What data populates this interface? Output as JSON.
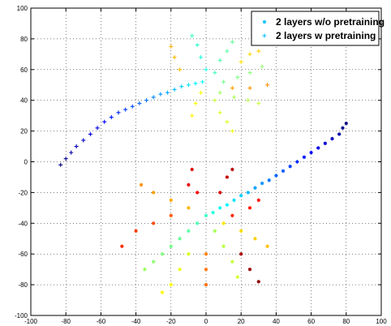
{
  "chart_data": {
    "type": "scatter",
    "title": "",
    "xlabel": "",
    "ylabel": "",
    "xlim": [
      -100,
      100
    ],
    "ylim": [
      -100,
      100
    ],
    "xticks": [
      -100,
      -80,
      -60,
      -40,
      -20,
      0,
      20,
      40,
      60,
      80,
      100
    ],
    "yticks": [
      -100,
      -80,
      -60,
      -40,
      -20,
      0,
      20,
      40,
      60,
      80,
      100
    ],
    "grid": true,
    "grid_style": "dotted",
    "colormap": "jet",
    "legend": {
      "placement": "top-right",
      "entries": [
        {
          "label": "2 layers w/o pretraining",
          "marker": "*",
          "color": "#00bfff"
        },
        {
          "label": "2 layers w pretraining",
          "marker": "+",
          "color": "#00bfff"
        }
      ]
    },
    "series": [
      {
        "name": "2 layers w/o pretraining",
        "marker": "point",
        "description_of_shape": "tail from (80,25) through (20,-10) fanning into radial rays around (0,-50)",
        "points": [
          [
            80,
            25
          ],
          [
            78,
            22
          ],
          [
            76,
            18
          ],
          [
            72,
            15
          ],
          [
            68,
            12
          ],
          [
            64,
            9
          ],
          [
            60,
            6
          ],
          [
            56,
            3
          ],
          [
            52,
            0
          ],
          [
            48,
            -3
          ],
          [
            44,
            -6
          ],
          [
            40,
            -9
          ],
          [
            36,
            -12
          ],
          [
            32,
            -14
          ],
          [
            28,
            -17
          ],
          [
            24,
            -20
          ],
          [
            20,
            -22
          ],
          [
            16,
            -25
          ],
          [
            12,
            -28
          ],
          [
            8,
            -30
          ],
          [
            4,
            -33
          ],
          [
            0,
            -35
          ],
          [
            -5,
            -40
          ],
          [
            -10,
            -45
          ],
          [
            -15,
            -50
          ],
          [
            -20,
            -55
          ],
          [
            -25,
            -60
          ],
          [
            -30,
            -65
          ],
          [
            -35,
            -70
          ],
          [
            5,
            -45
          ],
          [
            10,
            -55
          ],
          [
            15,
            -65
          ],
          [
            18,
            -75
          ],
          [
            -10,
            -60
          ],
          [
            -15,
            -70
          ],
          [
            -20,
            -80
          ],
          [
            -25,
            -85
          ],
          [
            10,
            -40
          ],
          [
            20,
            -45
          ],
          [
            28,
            -50
          ],
          [
            35,
            -55
          ],
          [
            -10,
            -30
          ],
          [
            -20,
            -25
          ],
          [
            -30,
            -20
          ],
          [
            -37,
            -15
          ],
          [
            0,
            -60
          ],
          [
            0,
            -70
          ],
          [
            0,
            -80
          ],
          [
            -20,
            -35
          ],
          [
            -30,
            -40
          ],
          [
            -40,
            -45
          ],
          [
            -48,
            -55
          ],
          [
            15,
            -35
          ],
          [
            25,
            -30
          ],
          [
            30,
            -25
          ],
          [
            -5,
            -20
          ],
          [
            -10,
            -15
          ],
          [
            -8,
            -5
          ],
          [
            8,
            -20
          ],
          [
            12,
            -10
          ],
          [
            15,
            -5
          ],
          [
            20,
            -60
          ],
          [
            25,
            -70
          ],
          [
            30,
            -78
          ]
        ]
      },
      {
        "name": "2 layers w pretraining",
        "marker": "plus",
        "description_of_shape": "tail from (-83,-2) rising to (-20,40) fanning into rays around (10,50)",
        "points": [
          [
            -83,
            -2
          ],
          [
            -80,
            2
          ],
          [
            -77,
            6
          ],
          [
            -74,
            10
          ],
          [
            -70,
            14
          ],
          [
            -66,
            18
          ],
          [
            -62,
            22
          ],
          [
            -58,
            26
          ],
          [
            -54,
            29
          ],
          [
            -50,
            32
          ],
          [
            -46,
            34
          ],
          [
            -42,
            36
          ],
          [
            -38,
            38
          ],
          [
            -34,
            40
          ],
          [
            -30,
            42
          ],
          [
            -26,
            44
          ],
          [
            -22,
            45
          ],
          [
            -18,
            47
          ],
          [
            -14,
            49
          ],
          [
            -10,
            50
          ],
          [
            -6,
            51
          ],
          [
            -2,
            52
          ],
          [
            0,
            60
          ],
          [
            -3,
            68
          ],
          [
            -5,
            76
          ],
          [
            -8,
            82
          ],
          [
            5,
            58
          ],
          [
            8,
            66
          ],
          [
            12,
            72
          ],
          [
            15,
            78
          ],
          [
            10,
            52
          ],
          [
            18,
            55
          ],
          [
            25,
            58
          ],
          [
            32,
            62
          ],
          [
            8,
            45
          ],
          [
            16,
            42
          ],
          [
            24,
            40
          ],
          [
            30,
            38
          ],
          [
            5,
            40
          ],
          [
            8,
            32
          ],
          [
            12,
            26
          ],
          [
            15,
            20
          ],
          [
            -3,
            45
          ],
          [
            -6,
            38
          ],
          [
            -8,
            30
          ],
          [
            20,
            65
          ],
          [
            25,
            70
          ],
          [
            30,
            72
          ],
          [
            -15,
            60
          ],
          [
            -18,
            68
          ],
          [
            -20,
            75
          ],
          [
            15,
            48
          ],
          [
            25,
            48
          ],
          [
            35,
            50
          ]
        ]
      }
    ]
  }
}
